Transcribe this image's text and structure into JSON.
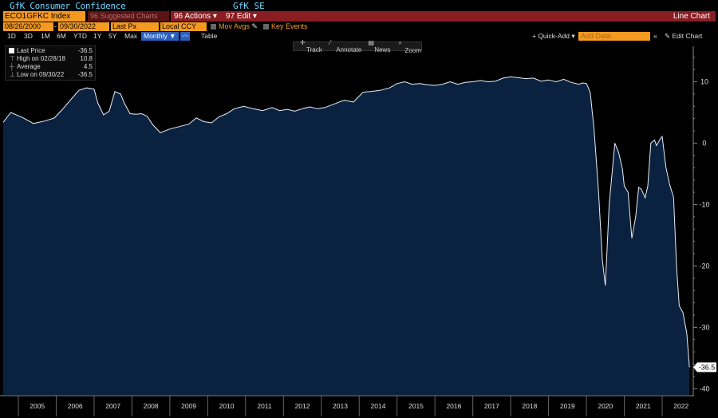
{
  "header": {
    "title": "GfK Consumer Confidence",
    "source": "GfK SE"
  },
  "toolbar": {
    "ticker": "ECO1GFKC Index",
    "suggested": "96 Suggested Charts",
    "actions": "96 Actions ▾",
    "edit": "97 Edit ▾",
    "chart_type": "Line Chart"
  },
  "params": {
    "start_date": "08/26/2000",
    "end_date": "09/30/2022",
    "field": "Last Px",
    "currency": "Local CCY",
    "mov_avgs": "Mov Avgs",
    "key_events": "Key Events"
  },
  "periods": {
    "items": [
      "1D",
      "3D",
      "1M",
      "6M",
      "YTD",
      "1Y",
      "5Y",
      "Max"
    ],
    "selected": "Monthly ▼",
    "table": "Table"
  },
  "right_tools": {
    "quick_add": "+ Quick-Add ▾",
    "add_data_placeholder": "Add Data",
    "edit_chart": "✎ Edit Chart"
  },
  "chart_tools": {
    "track": "Track",
    "annotate": "Annotate",
    "news": "News",
    "zoom": "Zoom"
  },
  "legend": {
    "last_price_label": "Last Price",
    "last_price_value": "-36.5",
    "high_label": "High on 02/28/18",
    "high_value": "10.8",
    "average_label": "Average",
    "average_value": "4.5",
    "low_label": "Low on 09/30/22",
    "low_value": "-36.5"
  },
  "colors": {
    "area_fill": "#0a2240",
    "line": "#e8eef5",
    "accent_orange": "#f59a21",
    "bar_red": "#8a1d22"
  },
  "chart_data": {
    "type": "area",
    "title": "GfK Consumer Confidence",
    "ylim": [
      -41,
      15
    ],
    "yticks": [
      10,
      0,
      -10,
      -20,
      -30,
      -40
    ],
    "xlim": [
      2004.6,
      2022.8
    ],
    "xticks": [
      "2005",
      "2006",
      "2007",
      "2008",
      "2009",
      "2010",
      "2011",
      "2012",
      "2013",
      "2014",
      "2015",
      "2016",
      "2017",
      "2018",
      "2019",
      "2020",
      "2021",
      "2022"
    ],
    "last_value_label": "-36.5",
    "series": [
      {
        "x": [
          2004.6,
          2004.8,
          2005.1,
          2005.4,
          2005.7,
          2005.95,
          2006.15,
          2006.4,
          2006.6,
          2006.8,
          2007.0,
          2007.1,
          2007.25,
          2007.4,
          2007.55,
          2007.7,
          2007.8,
          2007.95,
          2008.1,
          2008.25,
          2008.4,
          2008.55,
          2008.75,
          2009.0,
          2009.25,
          2009.5,
          2009.7,
          2009.9,
          2010.1,
          2010.3,
          2010.5,
          2010.7,
          2010.95,
          2011.2,
          2011.45,
          2011.7,
          2011.9,
          2012.1,
          2012.3,
          2012.5,
          2012.7,
          2012.9,
          2013.1,
          2013.35,
          2013.6,
          2013.85,
          2014.1,
          2014.3,
          2014.55,
          2014.8,
          2015.0,
          2015.2,
          2015.4,
          2015.6,
          2015.8,
          2016.0,
          2016.2,
          2016.4,
          2016.6,
          2016.8,
          2017.0,
          2017.2,
          2017.4,
          2017.6,
          2017.8,
          2018.0,
          2018.15,
          2018.4,
          2018.6,
          2018.8,
          2019.0,
          2019.2,
          2019.4,
          2019.6,
          2019.8,
          2019.9,
          2020.0,
          2020.1,
          2020.2,
          2020.32,
          2020.42,
          2020.5,
          2020.6,
          2020.75,
          2020.85,
          2020.95,
          2021.0,
          2021.1,
          2021.2,
          2021.3,
          2021.38,
          2021.45,
          2021.55,
          2021.62,
          2021.7,
          2021.8,
          2021.85,
          2021.95,
          2022.0,
          2022.1,
          2022.2,
          2022.3,
          2022.38,
          2022.45,
          2022.55,
          2022.65,
          2022.72
        ],
        "y": [
          3.4,
          5.0,
          4.2,
          3.2,
          3.6,
          4.1,
          5.4,
          7.2,
          8.6,
          9.0,
          8.8,
          6.5,
          4.6,
          5.2,
          8.4,
          8.0,
          6.5,
          4.8,
          4.7,
          4.8,
          4.4,
          3.0,
          1.7,
          2.3,
          2.7,
          3.1,
          4.1,
          3.5,
          3.3,
          4.3,
          4.8,
          5.6,
          6.0,
          5.6,
          5.3,
          5.8,
          5.3,
          5.5,
          5.2,
          5.6,
          5.9,
          5.6,
          5.8,
          6.4,
          7.0,
          6.7,
          8.3,
          8.4,
          8.6,
          9.0,
          9.7,
          10.0,
          9.6,
          9.7,
          9.5,
          9.4,
          9.6,
          10.0,
          9.6,
          9.9,
          10.0,
          10.2,
          10.0,
          10.1,
          10.6,
          10.8,
          10.7,
          10.5,
          10.6,
          10.1,
          10.3,
          10.0,
          10.4,
          9.9,
          9.6,
          9.8,
          9.7,
          8.3,
          2.3,
          -8.0,
          -19.0,
          -23.2,
          -10.0,
          0.0,
          -1.5,
          -4.2,
          -7.0,
          -8.0,
          -15.5,
          -12.0,
          -7.2,
          -7.5,
          -8.9,
          -7.0,
          0.0,
          0.5,
          -0.4,
          0.7,
          1.1,
          -4.0,
          -6.8,
          -8.8,
          -20.2,
          -26.5,
          -27.6,
          -31.0,
          -36.5
        ]
      }
    ]
  }
}
